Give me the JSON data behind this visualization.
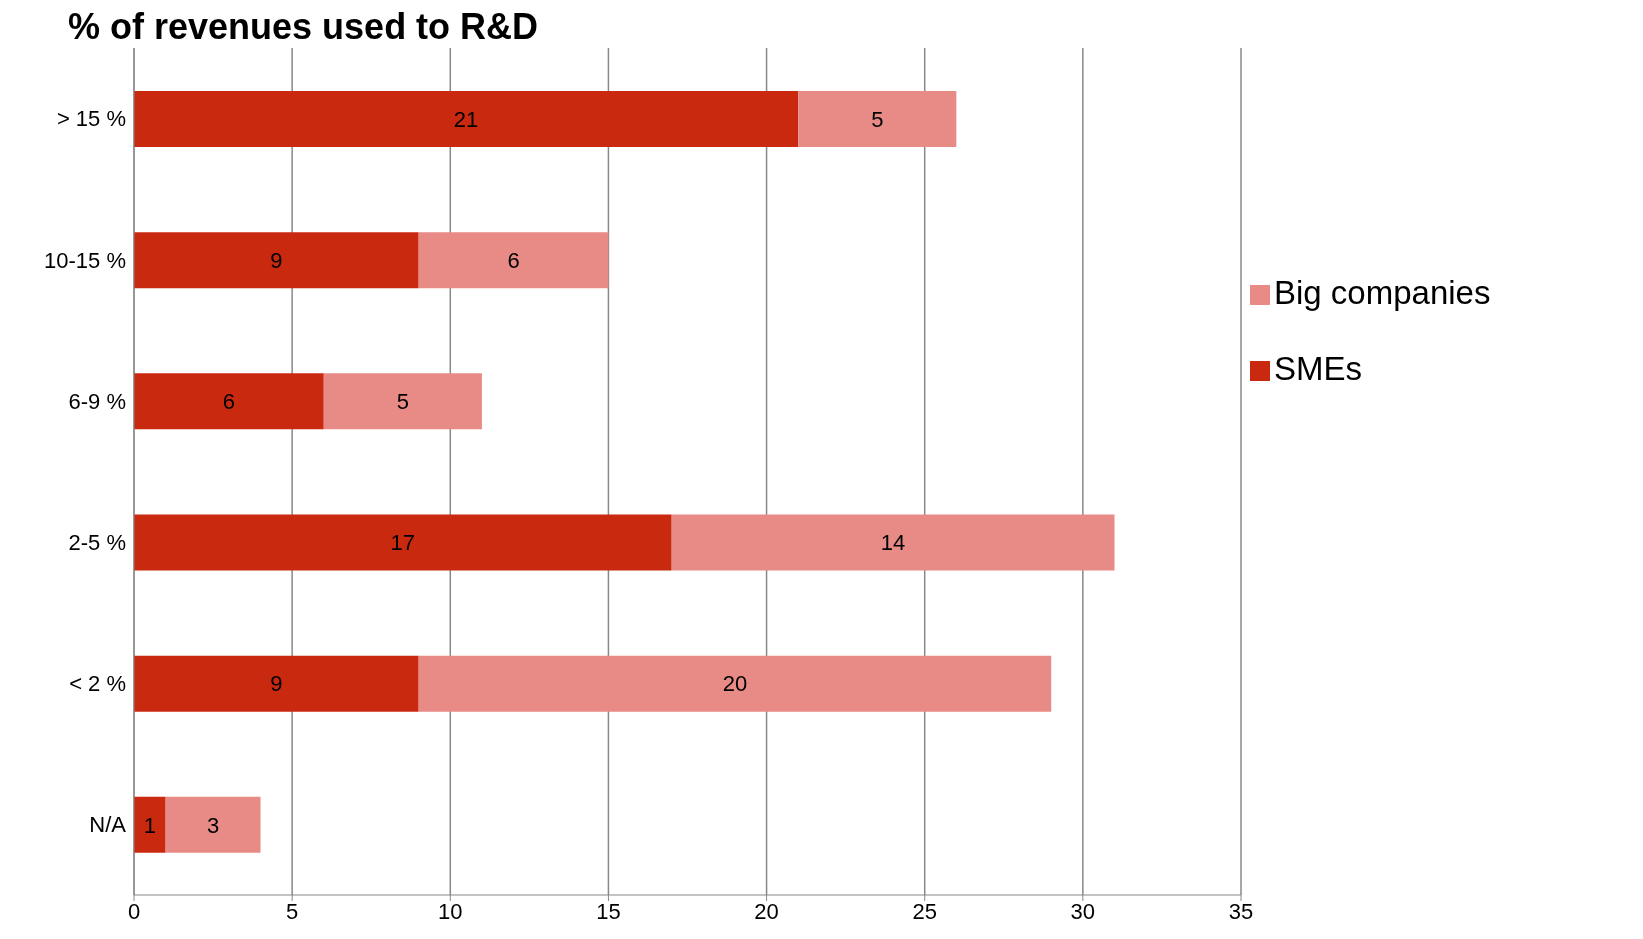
{
  "chart_data": {
    "type": "bar",
    "orientation": "horizontal",
    "stacked": true,
    "title": "% of revenues used to R&D",
    "categories": [
      "> 15 %",
      "10-15 %",
      "6-9 %",
      "2-5 %",
      "< 2 %",
      "N/A"
    ],
    "series": [
      {
        "name": "SMEs",
        "color": "#c8290f",
        "values": [
          21,
          9,
          6,
          17,
          9,
          1
        ]
      },
      {
        "name": "Big companies",
        "color": "#e88a85",
        "values": [
          5,
          6,
          5,
          14,
          20,
          3
        ]
      }
    ],
    "xlim": [
      0,
      35
    ],
    "xticks": [
      0,
      5,
      10,
      15,
      20,
      25,
      30,
      35
    ],
    "grid": "x",
    "legend": "top right",
    "data_labels": true
  }
}
